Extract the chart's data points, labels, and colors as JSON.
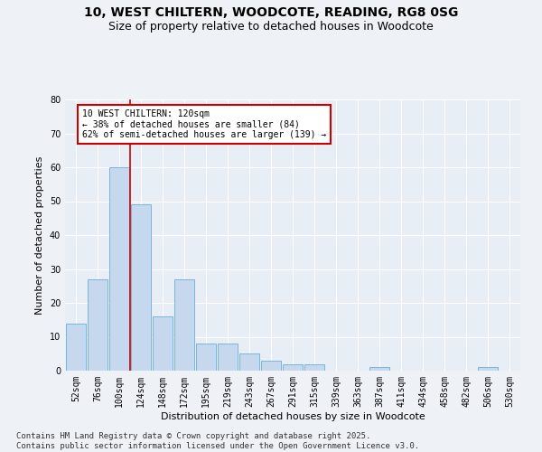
{
  "title_line1": "10, WEST CHILTERN, WOODCOTE, READING, RG8 0SG",
  "title_line2": "Size of property relative to detached houses in Woodcote",
  "xlabel": "Distribution of detached houses by size in Woodcote",
  "ylabel": "Number of detached properties",
  "categories": [
    "52sqm",
    "76sqm",
    "100sqm",
    "124sqm",
    "148sqm",
    "172sqm",
    "195sqm",
    "219sqm",
    "243sqm",
    "267sqm",
    "291sqm",
    "315sqm",
    "339sqm",
    "363sqm",
    "387sqm",
    "411sqm",
    "434sqm",
    "458sqm",
    "482sqm",
    "506sqm",
    "530sqm"
  ],
  "values": [
    14,
    27,
    60,
    49,
    16,
    27,
    8,
    8,
    5,
    3,
    2,
    2,
    0,
    0,
    1,
    0,
    0,
    0,
    0,
    1,
    0
  ],
  "bar_color": "#c5d8ee",
  "bar_edgecolor": "#6baed6",
  "vline_color": "#cc0000",
  "vline_x_index": 2,
  "annotation_text": "10 WEST CHILTERN: 120sqm\n← 38% of detached houses are smaller (84)\n62% of semi-detached houses are larger (139) →",
  "annotation_box_facecolor": "#ffffff",
  "annotation_box_edgecolor": "#cc0000",
  "ylim": [
    0,
    80
  ],
  "yticks": [
    0,
    10,
    20,
    30,
    40,
    50,
    60,
    70,
    80
  ],
  "background_color": "#eef2f7",
  "plot_bg_color": "#e8eef5",
  "footer_line1": "Contains HM Land Registry data © Crown copyright and database right 2025.",
  "footer_line2": "Contains public sector information licensed under the Open Government Licence v3.0.",
  "title_fontsize": 10,
  "subtitle_fontsize": 9,
  "axis_label_fontsize": 8,
  "tick_fontsize": 7,
  "annotation_fontsize": 7,
  "footer_fontsize": 6.5
}
